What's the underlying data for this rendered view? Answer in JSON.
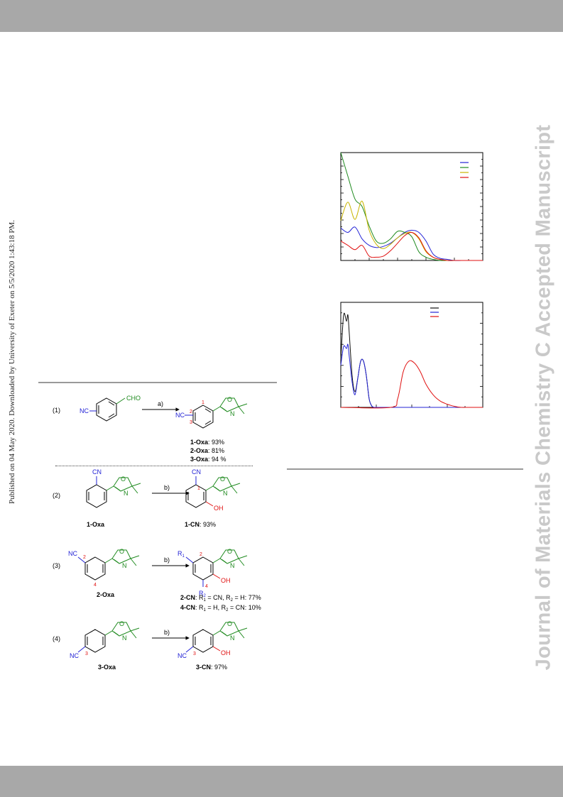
{
  "header": {},
  "sidebar_note": "Published on 04 May 2020. Downloaded by University of Exeter on 5/5/2020 1:43:18 PM.",
  "watermark": "Journal of Materials Chemistry C Accepted Manuscript",
  "colors": {
    "band": "#a8a8a8",
    "watermark": "#c9c9c9",
    "nitrile_blue": "#2323d6",
    "oxazoline_green": "#1f8a1f",
    "hydroxyl_red": "#e01010",
    "locant_red": "#e01010"
  },
  "chart_data": [
    {
      "type": "line",
      "title": "",
      "xlabel": "",
      "ylabel": "",
      "xlim": [
        0,
        100
      ],
      "ylim": [
        0,
        100
      ],
      "legend": {
        "placement": "top-right",
        "entries": [
          "",
          "",
          "",
          ""
        ]
      },
      "series": [
        {
          "name": "",
          "color": "#2323d6",
          "x": [
            0,
            5,
            10,
            15,
            20,
            25,
            30,
            35,
            40,
            45,
            50,
            55,
            60,
            65,
            70,
            75,
            80,
            85,
            90,
            95,
            100
          ],
          "y": [
            30,
            26,
            31,
            20,
            14,
            12,
            13,
            16,
            21,
            26,
            28,
            26,
            18,
            6,
            2,
            1,
            0,
            0,
            0,
            0,
            0
          ]
        },
        {
          "name": "",
          "color": "#1f8a1f",
          "x": [
            0,
            5,
            10,
            15,
            20,
            25,
            30,
            35,
            40,
            45,
            50,
            55,
            60,
            65,
            70,
            75,
            80,
            85,
            90,
            95,
            100
          ],
          "y": [
            100,
            78,
            57,
            50,
            32,
            18,
            16,
            20,
            27,
            26,
            22,
            8,
            3,
            1,
            0,
            0,
            0,
            0,
            0,
            0,
            0
          ]
        },
        {
          "name": "",
          "color": "#c8b400",
          "x": [
            0,
            5,
            10,
            15,
            20,
            25,
            30,
            35,
            40,
            45,
            50,
            55,
            60,
            65,
            70,
            75,
            80,
            85,
            90,
            95,
            100
          ],
          "y": [
            37,
            54,
            38,
            55,
            28,
            15,
            11,
            15,
            21,
            25,
            26,
            20,
            8,
            3,
            1,
            0,
            0,
            0,
            0,
            0,
            0
          ]
        },
        {
          "name": "",
          "color": "#e01010",
          "x": [
            0,
            5,
            10,
            15,
            20,
            25,
            30,
            35,
            40,
            45,
            50,
            55,
            60,
            65,
            70,
            75,
            80,
            85,
            90,
            95,
            100
          ],
          "y": [
            18,
            14,
            10,
            14,
            4,
            3,
            4,
            9,
            16,
            23,
            26,
            21,
            9,
            3,
            1,
            0,
            0,
            0,
            0,
            0,
            0
          ]
        }
      ]
    },
    {
      "type": "line",
      "title": "",
      "xlabel": "",
      "ylabel": "",
      "xlim": [
        0,
        100
      ],
      "ylim": [
        0,
        100
      ],
      "legend": {
        "placement": "top-right",
        "entries": [
          "",
          "",
          ""
        ]
      },
      "series": [
        {
          "name": "",
          "color": "#111111",
          "x": [
            0,
            2,
            4,
            5,
            6,
            8,
            10,
            12,
            14,
            16,
            18,
            20,
            22,
            24,
            26,
            28,
            30,
            100
          ],
          "y": [
            45,
            88,
            82,
            88,
            70,
            30,
            15,
            28,
            44,
            44,
            30,
            8,
            1,
            0,
            0,
            0,
            0,
            0
          ]
        },
        {
          "name": "",
          "color": "#2323d6",
          "x": [
            0,
            2,
            4,
            5,
            6,
            8,
            10,
            12,
            14,
            16,
            18,
            20,
            22,
            24,
            26,
            28,
            30,
            100
          ],
          "y": [
            40,
            58,
            56,
            60,
            48,
            24,
            12,
            28,
            44,
            44,
            30,
            8,
            1,
            0,
            0,
            0,
            0,
            0
          ]
        },
        {
          "name": "",
          "color": "#e01010",
          "x": [
            0,
            35,
            40,
            44,
            48,
            52,
            56,
            60,
            65,
            70,
            75,
            80,
            85,
            90,
            100
          ],
          "y": [
            0,
            0,
            8,
            34,
            44,
            42,
            34,
            22,
            12,
            6,
            3,
            1,
            0,
            0,
            0
          ]
        }
      ]
    }
  ],
  "scheme": {
    "reactions": [
      {
        "num": "(1)",
        "reagent": "a)",
        "start_cho": "CHO",
        "start_nc": "NC",
        "prod_nc": "NC",
        "loc1": "1",
        "loc2": "2",
        "loc3": "3",
        "o": "O",
        "n": "N",
        "yields": [
          {
            "label": "1-Oxa",
            "value": ": 93%"
          },
          {
            "label": "2-Oxa",
            "value": ": 81%"
          },
          {
            "label": "3-Oxa",
            "value": ": 94 %"
          }
        ]
      },
      {
        "num": "(2)",
        "reagent": "b)",
        "cn": "CN",
        "o": "O",
        "n": "N",
        "oh": "OH",
        "start_name": "1-Oxa",
        "loc1": "1",
        "product_name": "1-CN",
        "product_yield": ": 93%"
      },
      {
        "num": "(3)",
        "reagent": "b)",
        "nc": "NC",
        "loc2": "2",
        "loc4": "4",
        "o": "O",
        "n": "N",
        "start_name": "2-Oxa",
        "r1": "R",
        "r1_sub": "1",
        "r2": "R",
        "r2_sub": "2",
        "oh": "OH",
        "p_loc2": "2",
        "p_loc4": "4",
        "yield_lines": [
          {
            "label": "2-CN",
            "text": ": R",
            "s1": "1",
            "t1": " = CN, R",
            "s2": "2",
            "t2": " = H: 77%"
          },
          {
            "label": "4-CN",
            "text": ": R",
            "s1": "1",
            "t1": " = H, R",
            "s2": "2",
            "t2": " = CN: 10%"
          }
        ]
      },
      {
        "num": "(4)",
        "reagent": "b)",
        "nc": "NC",
        "loc3": "3",
        "o": "O",
        "n": "N",
        "oh": "OH",
        "start_name": "3-Oxa",
        "p_nc": "NC",
        "p_loc3": "3",
        "product_name": "3-CN",
        "product_yield": ": 97%"
      }
    ]
  }
}
